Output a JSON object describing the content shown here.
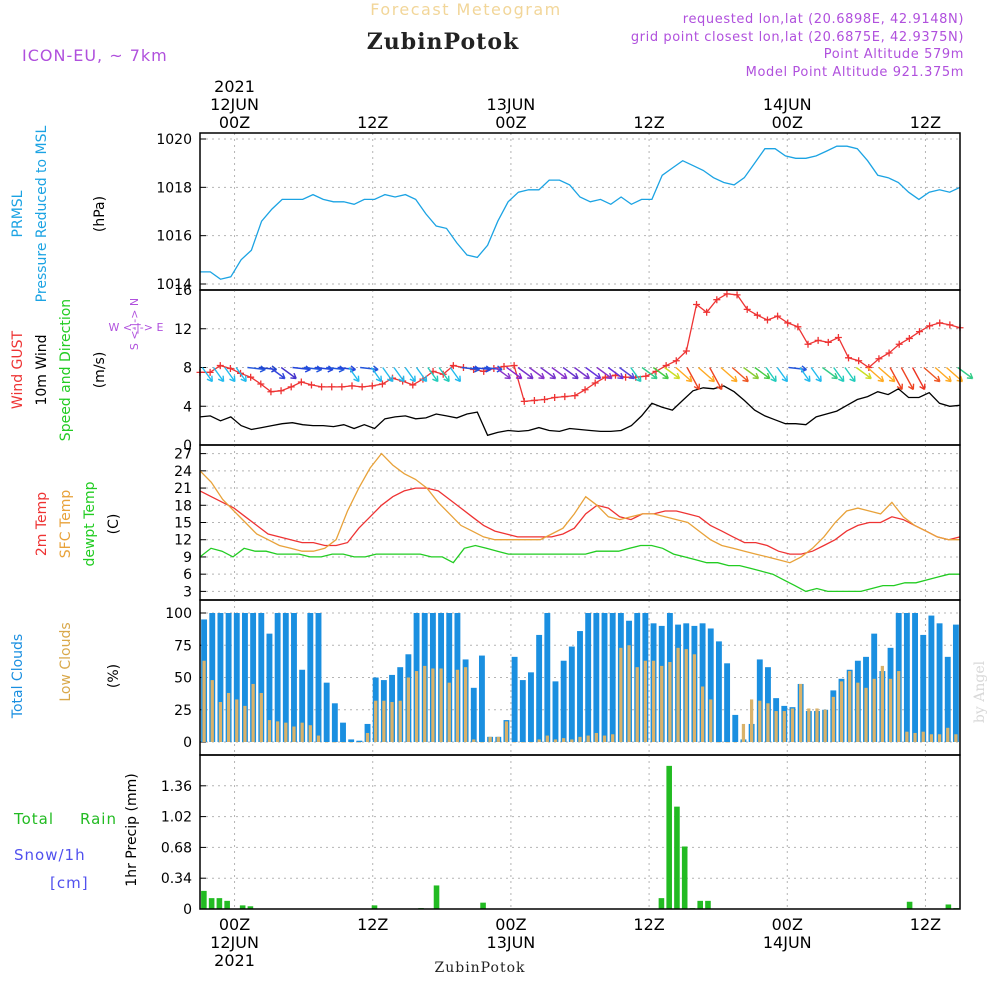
{
  "header": {
    "app_title": "Forecast Meteogram",
    "location": "ZubinPotok",
    "model": "ICON-EU, ~ 7km",
    "requested": "requested lon,lat (20.6898E, 42.9148N)",
    "closest": "grid point closest lon,lat (20.6875E, 42.9375N)",
    "point_alt": "Point Altitude 579m",
    "model_alt": "Model Point Altitude 921.375m"
  },
  "watermark": "by Angel",
  "footer_location": "ZubinPotok",
  "time_axis": {
    "top_year": "2021",
    "bottom_year": "2021",
    "ticks": [
      {
        "t": 3,
        "hour": "00Z",
        "date": "12JUN"
      },
      {
        "t": 15,
        "hour": "12Z",
        "date": ""
      },
      {
        "t": 27,
        "hour": "00Z",
        "date": "13JUN"
      },
      {
        "t": 39,
        "hour": "12Z",
        "date": ""
      },
      {
        "t": 51,
        "hour": "00Z",
        "date": "14JUN"
      },
      {
        "t": 63,
        "hour": "12Z",
        "date": ""
      }
    ]
  },
  "colors": {
    "pressure": "#1ba3e3",
    "gust": "#ee3333",
    "wind": "#000000",
    "temp2m": "#ee3333",
    "sfctemp": "#e8a23a",
    "dewpt": "#22cc22",
    "total_clouds": "#1a8fe0",
    "low_clouds": "#d9b26a",
    "rain": "#22bb22",
    "snow": "#5050ee",
    "purple": "#b050dd"
  },
  "panel_labels": {
    "pressure": {
      "a": "PRMSL",
      "b": "Pressure Reduced to MSL",
      "unit": "(hPa)"
    },
    "wind": {
      "a": "Wind GUST",
      "b": "10m Wind",
      "c": "Speed and Direction",
      "unit": "(m/s)",
      "compass_we": "W <-|-> E",
      "compass_ns": "S <-|-> N"
    },
    "temp": {
      "a": "2m Temp",
      "b": "SFC Temp",
      "c": "dewpt Temp",
      "unit": "(C)"
    },
    "clouds": {
      "a": "Total Clouds",
      "b": "Low Clouds",
      "unit": "(%)"
    },
    "precip": {
      "a": "Total",
      "b": "Rain",
      "c": "Snow/1h",
      "d": "[cm]",
      "unit": "1hr Precip (mm)"
    }
  },
  "chart_data": [
    {
      "type": "line",
      "ylim": [
        1014,
        1020
      ],
      "yticks": [
        "1014",
        "1016",
        "1018",
        "1020"
      ],
      "yticks_v": [
        1014,
        1016,
        1018,
        1020
      ],
      "series": [
        {
          "values": [
            1014.5,
            1014.5,
            1014.2,
            1014.3,
            1015.0,
            1015.4,
            1016.6,
            1017.1,
            1017.5,
            1017.5,
            1017.5,
            1017.7,
            1017.5,
            1017.4,
            1017.4,
            1017.3,
            1017.5,
            1017.5,
            1017.7,
            1017.6,
            1017.7,
            1017.5,
            1016.9,
            1016.4,
            1016.3,
            1015.7,
            1015.2,
            1015.1,
            1015.6,
            1016.6,
            1017.4,
            1017.8,
            1017.9,
            1017.9,
            1018.3,
            1018.3,
            1018.1,
            1017.6,
            1017.4,
            1017.5,
            1017.3,
            1017.6,
            1017.3,
            1017.5,
            1017.5,
            1018.5,
            1018.8,
            1019.1,
            1018.9,
            1018.7,
            1018.4,
            1018.2,
            1018.1,
            1018.4,
            1019.0,
            1019.6,
            1019.6,
            1019.3,
            1019.2,
            1019.2,
            1019.3,
            1019.5,
            1019.7,
            1019.7,
            1019.6,
            1019.1,
            1018.5,
            1018.4,
            1018.2,
            1017.8,
            1017.5,
            1017.8,
            1017.9,
            1017.8,
            1018.0
          ]
        }
      ]
    },
    {
      "type": "line",
      "ylim": [
        0,
        16
      ],
      "yticks": [
        "0",
        "4",
        "8",
        "12",
        "16"
      ],
      "yticks_v": [
        0,
        4,
        8,
        12,
        16
      ],
      "gust": [
        7.5,
        7.5,
        8.2,
        7.9,
        7.4,
        7.0,
        6.3,
        5.5,
        5.6,
        6.0,
        6.5,
        6.2,
        6.0,
        6.0,
        6.0,
        6.1,
        6.0,
        6.1,
        6.3,
        6.9,
        6.6,
        6.2,
        6.8,
        7.6,
        7.3,
        8.2,
        8.0,
        7.8,
        7.6,
        7.9,
        8.1,
        8.2,
        4.5,
        4.6,
        4.7,
        4.9,
        5.0,
        5.1,
        5.7,
        6.4,
        7.0,
        7.2,
        7.0,
        7.0,
        7.1,
        7.6,
        8.2,
        8.7,
        9.7,
        14.5,
        13.7,
        15.0,
        15.6,
        15.5,
        14.0,
        13.4,
        12.9,
        13.3,
        12.6,
        12.2,
        10.4,
        10.8,
        10.6,
        11.1,
        9.0,
        8.7,
        8.0,
        8.9,
        9.5,
        10.4,
        11.0,
        11.7,
        12.3,
        12.6,
        12.4,
        12.1
      ],
      "wind": [
        2.9,
        3.0,
        2.5,
        2.9,
        2.0,
        1.6,
        1.8,
        2.0,
        2.2,
        2.3,
        2.1,
        2.0,
        2.0,
        1.9,
        2.1,
        1.7,
        2.1,
        1.7,
        2.7,
        2.9,
        3.0,
        2.7,
        2.8,
        3.2,
        3.0,
        2.8,
        3.2,
        3.4,
        1.0,
        1.3,
        1.5,
        1.4,
        1.5,
        1.8,
        1.5,
        1.4,
        1.7,
        1.6,
        1.5,
        1.4,
        1.4,
        1.5,
        2.0,
        3.0,
        4.3,
        3.9,
        3.6,
        4.6,
        5.6,
        5.9,
        5.8,
        6.1,
        5.5,
        4.6,
        3.6,
        3.0,
        2.6,
        2.2,
        2.2,
        2.1,
        2.9,
        3.2,
        3.5,
        4.1,
        4.7,
        5.0,
        5.5,
        5.2,
        5.8,
        4.9,
        4.9,
        5.4,
        4.3,
        4.0,
        4.1
      ],
      "arrow_colors": [
        "#22bbee",
        "#22bbee",
        "#22bbee",
        "#22bbee",
        "#2255dd",
        "#2244cc",
        "#3344dd",
        "#4433cc",
        "#2244dd",
        "#2255dd",
        "#2244dd",
        "#2255dd",
        "#2244dd",
        "#22bbee",
        "#2255dd",
        "#22bbee",
        "#22bbee",
        "#22bbee",
        "#22bbee",
        "#22bbee",
        "#22ccbb",
        "#22ccbb",
        "#22bbee",
        "#2255dd",
        "#2244dd",
        "#2255dd",
        "#8833cc",
        "#8822cc",
        "#7733cc",
        "#8833cc",
        "#7733cc",
        "#8833cc",
        "#6633cc",
        "#7733cc",
        "#6633dd",
        "#8833cc",
        "#6633dd",
        "#5544dd",
        "#22ccbb",
        "#33cc88",
        "#44cc44",
        "#ccdd22",
        "#ffaa22",
        "#ee4422",
        "#ffaa22",
        "#ee4422",
        "#ffaa22",
        "#ee5522",
        "#88cc33",
        "#44cc44",
        "#22ccbb",
        "#22bbee",
        "#2255dd",
        "#22bbee",
        "#22bbee",
        "#33cc88",
        "#22ccbb",
        "#22ccbb",
        "#ccdd22",
        "#ffaa22",
        "#ffaa22",
        "#ee4422",
        "#ee4422",
        "#ee3322",
        "#ee5522",
        "#ffaa22",
        "#ffaa22",
        "#33cc88"
      ]
    },
    {
      "type": "line",
      "ylim": [
        1.5,
        28.5
      ],
      "yticks": [
        "3",
        "6",
        "9",
        "12",
        "15",
        "18",
        "21",
        "24",
        "27"
      ],
      "yticks_v": [
        3,
        6,
        9,
        12,
        15,
        18,
        21,
        24,
        27
      ],
      "series": [
        {
          "name": "2m Temp",
          "values": [
            20.5,
            19.5,
            18.5,
            17.5,
            16.0,
            14.5,
            13.0,
            12.5,
            12.0,
            11.5,
            11.5,
            11.0,
            11.0,
            11.5,
            14.0,
            16.0,
            18.0,
            19.5,
            20.5,
            21.0,
            21.0,
            20.5,
            19.0,
            17.5,
            16.0,
            14.5,
            13.5,
            13.0,
            12.5,
            12.5,
            12.5,
            12.5,
            13.0,
            14.0,
            16.5,
            18.0,
            17.5,
            16.0,
            15.5,
            16.5,
            16.5,
            17.0,
            17.0,
            16.5,
            16.0,
            14.5,
            13.5,
            12.5,
            11.5,
            11.5,
            11.0,
            10.0,
            9.5,
            9.5,
            10.0,
            11.0,
            12.0,
            13.5,
            14.5,
            15.0,
            15.0,
            16.0,
            15.5,
            14.5,
            13.5,
            12.5,
            12.0,
            12.5
          ]
        },
        {
          "name": "SFC Temp",
          "values": [
            24.0,
            22.0,
            19.0,
            17.0,
            15.0,
            13.0,
            12.0,
            11.0,
            10.5,
            10.0,
            10.0,
            10.5,
            12.0,
            17.0,
            21.0,
            24.5,
            27.0,
            25.0,
            23.5,
            22.5,
            21.0,
            18.5,
            16.5,
            14.5,
            13.5,
            12.5,
            12.0,
            12.0,
            12.0,
            12.0,
            12.0,
            13.0,
            14.0,
            16.5,
            19.5,
            18.0,
            16.0,
            15.5,
            16.0,
            16.5,
            16.5,
            16.0,
            15.5,
            15.0,
            13.5,
            12.0,
            11.0,
            10.5,
            10.0,
            9.5,
            9.0,
            8.5,
            8.0,
            9.0,
            10.5,
            12.5,
            15.0,
            17.0,
            17.5,
            17.0,
            16.5,
            18.5,
            16.0,
            14.5,
            13.5,
            12.5,
            12.0,
            12.0
          ]
        },
        {
          "name": "dewpt Temp",
          "values": [
            9.0,
            10.5,
            10.0,
            9.0,
            10.5,
            10.0,
            10.0,
            9.5,
            9.5,
            9.5,
            9.0,
            9.0,
            9.5,
            9.5,
            9.0,
            9.0,
            9.5,
            9.5,
            9.5,
            9.5,
            9.5,
            9.0,
            9.0,
            8.0,
            10.5,
            11.0,
            10.5,
            10.0,
            9.5,
            9.5,
            9.5,
            9.5,
            9.5,
            9.5,
            9.5,
            9.5,
            10.0,
            10.0,
            10.0,
            10.5,
            11.0,
            11.0,
            10.5,
            9.5,
            9.0,
            8.5,
            8.0,
            8.0,
            7.5,
            7.5,
            7.0,
            6.5,
            6.0,
            5.0,
            4.0,
            3.0,
            3.5,
            3.0,
            3.0,
            3.0,
            3.0,
            3.5,
            4.0,
            4.0,
            4.5,
            4.5,
            5.0,
            5.5,
            6.0,
            6.0
          ]
        }
      ]
    },
    {
      "type": "bar",
      "ylim": [
        0,
        100
      ],
      "yticks": [
        "0",
        "25",
        "50",
        "75",
        "100"
      ],
      "yticks_v": [
        0,
        25,
        50,
        75,
        100
      ],
      "series": [
        {
          "name": "Total Clouds",
          "values": [
            95,
            100,
            100,
            100,
            100,
            100,
            100,
            100,
            84,
            100,
            100,
            100,
            56,
            100,
            100,
            46,
            30,
            15,
            2,
            1,
            14,
            50,
            48,
            52,
            58,
            68,
            100,
            100,
            100,
            100,
            100,
            100,
            64,
            42,
            67,
            4,
            4,
            17,
            66,
            48,
            54,
            83,
            100,
            47,
            63,
            74,
            86,
            100,
            100,
            100,
            100,
            100,
            94,
            100,
            100,
            92,
            90,
            100,
            91,
            92,
            90,
            92,
            88,
            78,
            61,
            21,
            2,
            14,
            64,
            58,
            34,
            28,
            27,
            45,
            24,
            24,
            25,
            40,
            49,
            56,
            63,
            66,
            84,
            55,
            73,
            100,
            100,
            100,
            83,
            98,
            92,
            66,
            91
          ]
        },
        {
          "name": "Low Clouds",
          "values": [
            63,
            48,
            31,
            38,
            33,
            28,
            45,
            38,
            17,
            16,
            15,
            12,
            15,
            13,
            5,
            0,
            0,
            0,
            0,
            0,
            7,
            32,
            32,
            31,
            32,
            50,
            55,
            59,
            57,
            57,
            46,
            56,
            58,
            2,
            0,
            4,
            4,
            16,
            0,
            0,
            0,
            2,
            5,
            2,
            3,
            2,
            4,
            5,
            7,
            5,
            6,
            73,
            75,
            58,
            63,
            63,
            59,
            62,
            73,
            72,
            68,
            43,
            33,
            0,
            0,
            0,
            14,
            33,
            32,
            30,
            24,
            24,
            26,
            45,
            26,
            26,
            25,
            35,
            47,
            55,
            46,
            42,
            49,
            59,
            49,
            55,
            8,
            7,
            8,
            6,
            6,
            11,
            6
          ]
        }
      ]
    },
    {
      "type": "bar",
      "ylim": [
        0,
        1.7
      ],
      "yticks": [
        "0",
        "0.34",
        "0.68",
        "1.02",
        "1.36"
      ],
      "yticks_v": [
        0,
        0.34,
        0.68,
        1.02,
        1.36
      ],
      "series": [
        {
          "name": "Total Rain",
          "values": [
            0.2,
            0.12,
            0.12,
            0.09,
            0,
            0.04,
            0.03,
            0,
            0,
            0,
            0,
            0,
            0,
            0,
            0,
            0,
            0,
            0,
            0,
            0,
            0,
            0,
            0.04,
            0,
            0,
            0,
            0,
            0,
            0.01,
            0,
            0.26,
            0,
            0,
            0,
            0,
            0,
            0.07,
            0,
            0,
            0,
            0,
            0,
            0,
            0,
            0,
            0,
            0,
            0,
            0,
            0,
            0,
            0,
            0,
            0,
            0,
            0,
            0,
            0,
            0,
            0.12,
            1.58,
            1.13,
            0.69,
            0.01,
            0.09,
            0.09,
            0,
            0,
            0,
            0,
            0,
            0,
            0,
            0,
            0,
            0,
            0,
            0,
            0,
            0,
            0,
            0,
            0,
            0,
            0,
            0,
            0,
            0,
            0,
            0,
            0,
            0.08,
            0,
            0,
            0,
            0,
            0.05,
            0.01
          ]
        }
      ]
    }
  ]
}
